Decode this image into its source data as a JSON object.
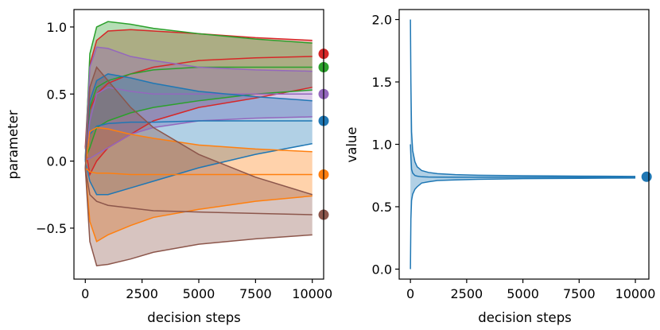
{
  "chart_data": [
    {
      "type": "line",
      "subtype": "band",
      "panel": "left",
      "xlabel": "decision steps",
      "ylabel": "parameter",
      "xlim": [
        -500,
        10500
      ],
      "ylim": [
        -0.88,
        1.13
      ],
      "xticks": [
        0,
        2500,
        5000,
        7500,
        10000
      ],
      "xtick_labels": [
        "0",
        "2500",
        "5000",
        "7500",
        "10000"
      ],
      "yticks": [
        -0.5,
        0.0,
        0.5,
        1.0
      ],
      "ytick_labels": [
        "−0.5",
        "0.0",
        "0.5",
        "1.0"
      ],
      "grid": false,
      "series": [
        {
          "name": "red",
          "color": "#d62728",
          "x": [
            0,
            200,
            500,
            1000,
            2000,
            3000,
            5000,
            7500,
            10000
          ],
          "mean": [
            0.1,
            0.38,
            0.5,
            0.58,
            0.65,
            0.7,
            0.75,
            0.77,
            0.78
          ],
          "upper": [
            0.1,
            0.72,
            0.9,
            0.97,
            0.98,
            0.97,
            0.95,
            0.92,
            0.9
          ],
          "lower": [
            0.1,
            -0.1,
            0.0,
            0.1,
            0.2,
            0.3,
            0.4,
            0.47,
            0.55
          ],
          "true_value": 0.8
        },
        {
          "name": "green",
          "color": "#2ca02c",
          "x": [
            0,
            200,
            500,
            1000,
            2000,
            3000,
            5000,
            7500,
            10000
          ],
          "mean": [
            0.02,
            0.4,
            0.55,
            0.6,
            0.65,
            0.68,
            0.7,
            0.7,
            0.7
          ],
          "upper": [
            0.02,
            0.8,
            1.0,
            1.04,
            1.02,
            0.99,
            0.95,
            0.91,
            0.88
          ],
          "lower": [
            0.02,
            0.1,
            0.25,
            0.3,
            0.36,
            0.4,
            0.45,
            0.5,
            0.53
          ],
          "true_value": 0.7
        },
        {
          "name": "purple",
          "color": "#9467bd",
          "x": [
            0,
            200,
            500,
            1000,
            2000,
            3000,
            5000,
            7500,
            10000
          ],
          "mean": [
            0.01,
            0.3,
            0.5,
            0.55,
            0.52,
            0.5,
            0.5,
            0.5,
            0.5
          ],
          "upper": [
            0.01,
            0.7,
            0.85,
            0.84,
            0.78,
            0.75,
            0.7,
            0.68,
            0.67
          ],
          "lower": [
            0.01,
            0.02,
            0.05,
            0.1,
            0.2,
            0.25,
            0.3,
            0.32,
            0.33
          ],
          "true_value": 0.5
        },
        {
          "name": "blue",
          "color": "#1f77b4",
          "x": [
            0,
            200,
            500,
            1000,
            2000,
            3000,
            5000,
            7500,
            10000
          ],
          "mean": [
            0.0,
            0.2,
            0.26,
            0.28,
            0.29,
            0.29,
            0.3,
            0.3,
            0.3
          ],
          "upper": [
            0.0,
            0.45,
            0.6,
            0.65,
            0.62,
            0.58,
            0.52,
            0.48,
            0.45
          ],
          "lower": [
            0.0,
            -0.15,
            -0.25,
            -0.25,
            -0.2,
            -0.15,
            -0.05,
            0.05,
            0.13
          ],
          "true_value": 0.3
        },
        {
          "name": "orange",
          "color": "#ff7f0e",
          "x": [
            0,
            200,
            500,
            1000,
            2000,
            3000,
            5000,
            7500,
            10000
          ],
          "mean": [
            -0.05,
            -0.08,
            -0.09,
            -0.09,
            -0.1,
            -0.1,
            -0.1,
            -0.1,
            -0.1
          ],
          "upper": [
            -0.05,
            0.22,
            0.25,
            0.24,
            0.2,
            0.17,
            0.12,
            0.09,
            0.07
          ],
          "lower": [
            -0.05,
            -0.45,
            -0.6,
            -0.55,
            -0.48,
            -0.42,
            -0.36,
            -0.3,
            -0.26
          ],
          "true_value": -0.1
        },
        {
          "name": "brown",
          "color": "#8c564b",
          "x": [
            0,
            200,
            500,
            1000,
            2000,
            3000,
            5000,
            7500,
            10000
          ],
          "mean": [
            -0.05,
            -0.25,
            -0.3,
            -0.33,
            -0.35,
            -0.37,
            -0.38,
            -0.39,
            -0.4
          ],
          "upper": [
            -0.05,
            0.55,
            0.7,
            0.6,
            0.4,
            0.25,
            0.05,
            -0.12,
            -0.25
          ],
          "lower": [
            -0.05,
            -0.6,
            -0.78,
            -0.77,
            -0.73,
            -0.68,
            -0.62,
            -0.58,
            -0.55
          ],
          "true_value": -0.4
        }
      ],
      "true_value_x": 10500
    },
    {
      "type": "line",
      "subtype": "band",
      "panel": "right",
      "xlabel": "decision steps",
      "ylabel": "value",
      "xlim": [
        -500,
        10600
      ],
      "ylim": [
        -0.08,
        2.08
      ],
      "xticks": [
        0,
        2500,
        5000,
        7500,
        10000
      ],
      "xtick_labels": [
        "0",
        "2500",
        "5000",
        "7500",
        "10000"
      ],
      "yticks": [
        0.0,
        0.5,
        1.0,
        1.5,
        2.0
      ],
      "ytick_labels": [
        "0.0",
        "0.5",
        "1.0",
        "1.5",
        "2.0"
      ],
      "grid": false,
      "series": [
        {
          "name": "value",
          "color": "#1f77b4",
          "x": [
            0,
            20,
            50,
            100,
            200,
            300,
            500,
            800,
            1200,
            2000,
            3000,
            5000,
            7500,
            10000
          ],
          "mean": [
            1.0,
            0.9,
            0.8,
            0.77,
            0.75,
            0.745,
            0.74,
            0.738,
            0.737,
            0.736,
            0.736,
            0.736,
            0.736,
            0.736
          ],
          "upper": [
            2.0,
            1.5,
            1.1,
            0.95,
            0.86,
            0.82,
            0.79,
            0.775,
            0.765,
            0.757,
            0.752,
            0.748,
            0.745,
            0.743
          ],
          "lower": [
            0.0,
            0.4,
            0.55,
            0.6,
            0.64,
            0.66,
            0.69,
            0.7,
            0.71,
            0.715,
            0.72,
            0.725,
            0.728,
            0.73
          ],
          "true_value": 0.74
        }
      ],
      "true_value_x": 10500
    }
  ]
}
